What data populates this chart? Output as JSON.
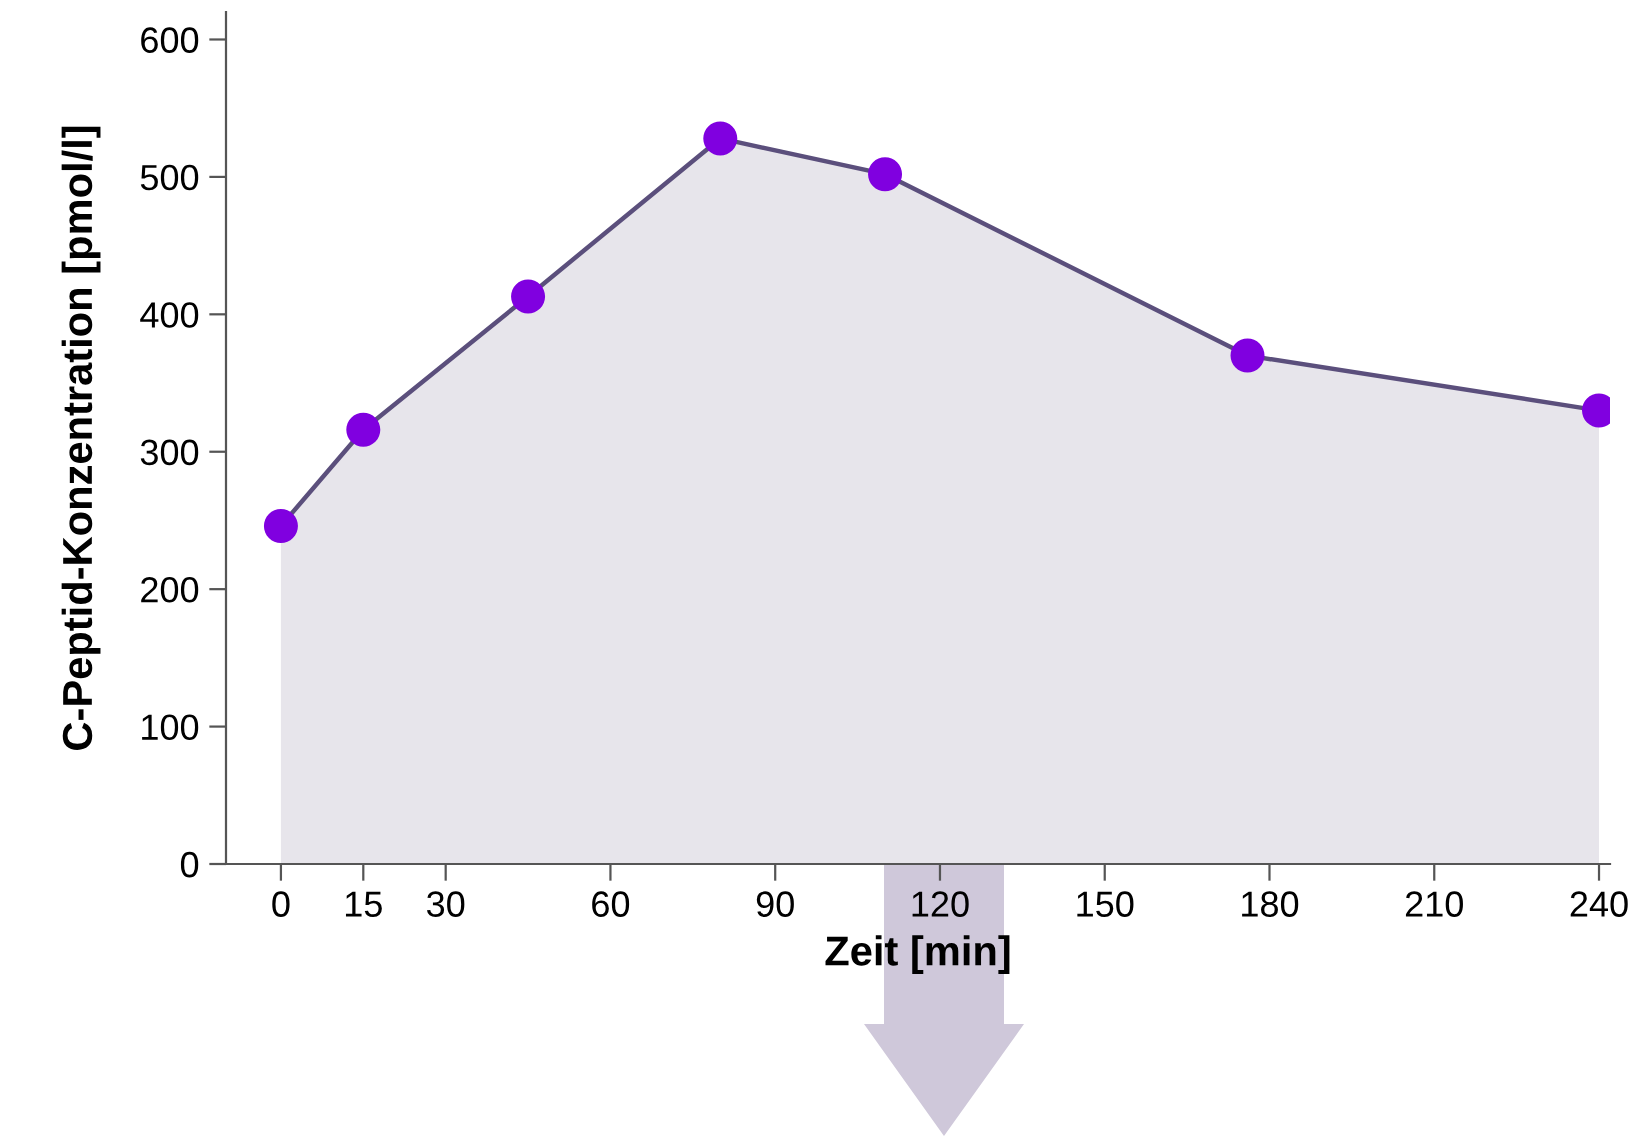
{
  "chart_data": {
    "type": "area",
    "xlabel": "Zeit [min]",
    "ylabel": "C-Peptid-Konzentration [pmol/l]",
    "x": [
      0,
      15,
      45,
      80,
      110,
      176,
      240
    ],
    "series": [
      {
        "color": "#5b4f7c",
        "colors": [
          "#8000e0",
          "#8000e0",
          "#8000e0",
          "#8000e0",
          "#8000e0",
          "#8000e0",
          "#8000e0"
        ],
        "values": [
          246,
          316,
          413,
          528,
          502,
          370,
          330
        ]
      }
    ],
    "xlim": [
      -10,
      242
    ],
    "ylim": [
      0,
      620
    ],
    "xticks": [
      0,
      15,
      30,
      60,
      90,
      120,
      150,
      180,
      210,
      240
    ],
    "yticks": [
      0,
      100,
      200,
      300,
      400,
      500,
      600
    ],
    "marker": "circle",
    "line_style": "solid",
    "grid": false,
    "legend": false
  }
}
